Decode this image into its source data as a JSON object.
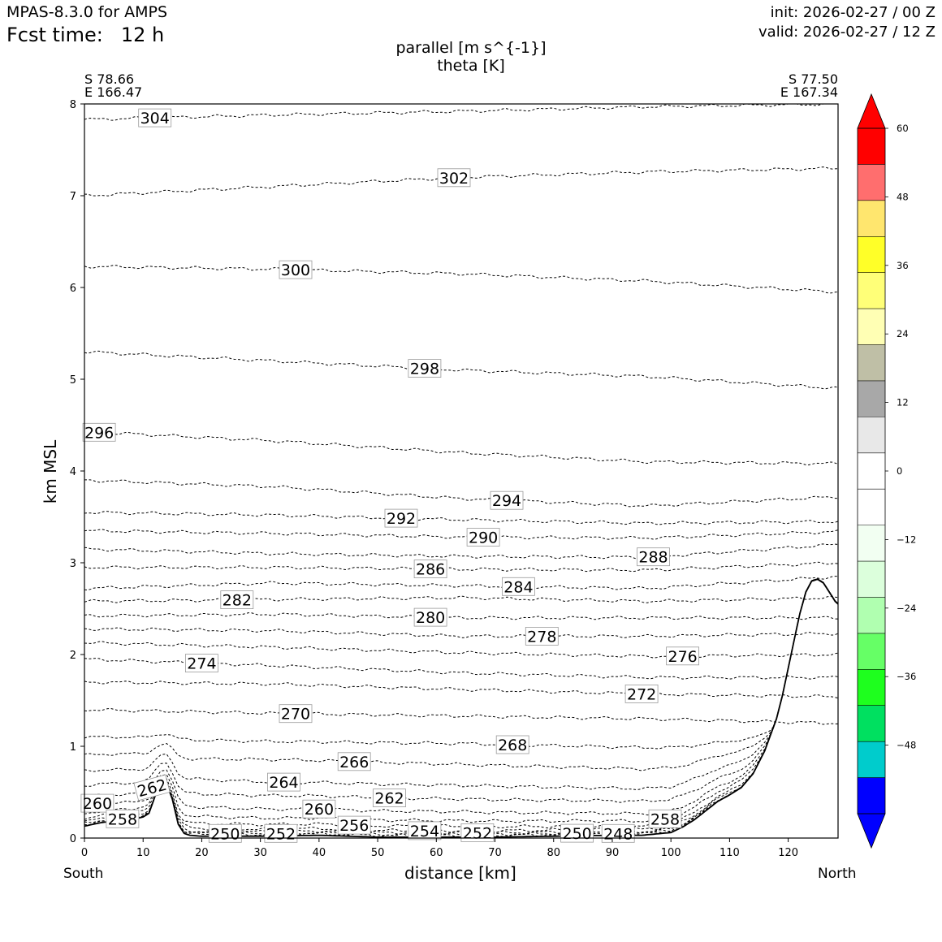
{
  "header": {
    "model_title": "MPAS-8.3.0 for AMPS",
    "fcst_label": "Fcst time:",
    "fcst_value": "12 h",
    "init": "init: 2026-02-27 / 00 Z",
    "valid": "valid: 2026-02-27 / 12 Z",
    "var_line1": "parallel [m s^{-1}]",
    "var_line2": "theta [K]"
  },
  "endpoints": {
    "left_lat": "S 78.66",
    "left_lon": "E 166.47",
    "right_lat": "S 77.50",
    "right_lon": "E 167.34",
    "south": "South",
    "north": "North"
  },
  "chart_data": {
    "type": "cross-section contour",
    "title": "parallel [m s^{-1}] / theta [K]",
    "xlabel": "distance [km]",
    "ylabel": "km MSL",
    "xlim": [
      0,
      128.5
    ],
    "ylim": [
      0,
      8
    ],
    "x_ticks": [
      0,
      10,
      20,
      30,
      40,
      50,
      60,
      70,
      80,
      90,
      100,
      110,
      120
    ],
    "y_ticks": [
      0,
      1,
      2,
      3,
      4,
      5,
      6,
      7,
      8
    ],
    "terrain": {
      "x": [
        0,
        3,
        6,
        8,
        10,
        11,
        12,
        13,
        14,
        15,
        16,
        17,
        18,
        20,
        25,
        30,
        40,
        45,
        50,
        60,
        70,
        80,
        90,
        95,
        100,
        102,
        104,
        106,
        108,
        110,
        112,
        114,
        116,
        118,
        119,
        120,
        121,
        122,
        123,
        124,
        125,
        126,
        127,
        128,
        128.5
      ],
      "z": [
        0.13,
        0.17,
        0.19,
        0.2,
        0.23,
        0.27,
        0.45,
        0.58,
        0.6,
        0.42,
        0.15,
        0.05,
        0.03,
        0.02,
        0.02,
        0.02,
        0.03,
        0.02,
        0.01,
        0.01,
        0.01,
        0.02,
        0.03,
        0.03,
        0.06,
        0.12,
        0.2,
        0.3,
        0.4,
        0.47,
        0.55,
        0.7,
        0.95,
        1.3,
        1.55,
        1.85,
        2.15,
        2.45,
        2.68,
        2.8,
        2.82,
        2.78,
        2.68,
        2.58,
        2.55
      ]
    },
    "theta_levels": [
      {
        "value": 304,
        "z": [
          7.83,
          7.88,
          7.92,
          7.97,
          8.0
        ],
        "label_x": 12
      },
      {
        "value": 302,
        "z": [
          7.0,
          7.1,
          7.2,
          7.26,
          7.3
        ],
        "label_x": 63
      },
      {
        "value": 300,
        "z": [
          6.23,
          6.2,
          6.15,
          6.07,
          5.95
        ],
        "label_x": 36
      },
      {
        "value": 298,
        "z": [
          5.3,
          5.2,
          5.1,
          5.03,
          4.9
        ],
        "label_x": 58
      },
      {
        "value": 296,
        "z": [
          4.43,
          4.33,
          4.2,
          4.1,
          4.08
        ],
        "label_x": 2.5
      },
      {
        "value": 294,
        "z": [
          3.9,
          3.83,
          3.7,
          3.62,
          3.72
        ],
        "label_x": 72
      },
      {
        "value": 292,
        "z": [
          3.55,
          3.52,
          3.47,
          3.43,
          3.45
        ],
        "label_x": 54
      },
      {
        "value": 290,
        "z": [
          3.35,
          3.32,
          3.28,
          3.27,
          3.34
        ],
        "label_x": 68
      },
      {
        "value": 288,
        "z": [
          3.15,
          3.1,
          3.07,
          3.06,
          3.2
        ],
        "label_x": 97
      },
      {
        "value": 286,
        "z": [
          2.95,
          2.95,
          2.93,
          2.92,
          3.0
        ],
        "label_x": 59
      },
      {
        "value": 284,
        "z": [
          2.72,
          2.78,
          2.75,
          2.72,
          2.85
        ],
        "label_x": 74
      },
      {
        "value": 282,
        "z": [
          2.58,
          2.6,
          2.62,
          2.58,
          2.62
        ],
        "label_x": 26
      },
      {
        "value": 280,
        "z": [
          2.42,
          2.44,
          2.4,
          2.4,
          2.4
        ],
        "label_x": 59
      },
      {
        "value": 278,
        "z": [
          2.28,
          2.26,
          2.2,
          2.2,
          2.23
        ],
        "label_x": 78
      },
      {
        "value": 276,
        "z": [
          2.13,
          2.08,
          2.02,
          1.98,
          2.0
        ],
        "label_x": 102
      },
      {
        "value": 274,
        "z": [
          1.95,
          1.88,
          1.8,
          1.75,
          1.75
        ],
        "label_x": 20
      },
      {
        "value": 272,
        "z": [
          1.7,
          1.68,
          1.62,
          1.57,
          1.54
        ],
        "label_x": 95
      },
      {
        "value": 270,
        "z": [
          1.4,
          1.36,
          1.33,
          1.3,
          1.25
        ],
        "label_x": 36
      },
      {
        "value": 268,
        "z": [
          1.09,
          1.05,
          1.03,
          0.98,
          0.95
        ],
        "label_x": 73
      },
      {
        "value": 266,
        "z": [
          0.87,
          0.85,
          0.8,
          0.74,
          0.78
        ],
        "label_x": 46
      },
      {
        "value": 264,
        "z": [
          0.68,
          0.6,
          0.57,
          0.52,
          0.6
        ],
        "label_x": 34
      },
      {
        "value": 262,
        "z": [
          0.5,
          0.45,
          0.42,
          0.38,
          0.42
        ],
        "label_x": 52
      },
      {
        "value": 260,
        "z": [
          0.36,
          0.3,
          0.28,
          0.24,
          0.3
        ],
        "label_x": 40
      },
      {
        "value": 258,
        "z": [
          0.25,
          0.2,
          0.18,
          0.16,
          0.22
        ],
        "label_x": 99
      },
      {
        "value": 256,
        "z": [
          0.16,
          0.13,
          0.12,
          0.1,
          0.12
        ],
        "label_x": 46
      },
      {
        "value": 254,
        "z": [
          0.1,
          0.08,
          0.07,
          0.07,
          0.08
        ],
        "label_x": 58
      },
      {
        "value": 252,
        "z": [
          0.06,
          0.05,
          0.05,
          0.04,
          0.05
        ],
        "label_x": 67
      },
      {
        "value": 250,
        "z": [
          0.04,
          0.03,
          0.03,
          0.03,
          0.04
        ],
        "label_x": 84
      },
      {
        "value": 248,
        "z": [
          0.03,
          0.02,
          0.02,
          0.02,
          0.03
        ],
        "label_x": 91
      }
    ],
    "extra_labels": [
      {
        "text": "262",
        "x": 11.5,
        "z": 0.55,
        "rotate": -15
      },
      {
        "text": "260",
        "x": 2.2,
        "z": 0.38
      },
      {
        "text": "258",
        "x": 6.5,
        "z": 0.21
      },
      {
        "text": "250",
        "x": 24,
        "z": 0.05
      },
      {
        "text": "252",
        "x": 33.5,
        "z": 0.05
      }
    ],
    "colorbar": {
      "min": -60,
      "max": 60,
      "step": 6,
      "ticks": [
        60,
        48,
        36,
        24,
        12,
        0,
        -12,
        -24,
        -36,
        -48
      ],
      "tick_labels": [
        "60",
        "48",
        "36",
        "24",
        "12",
        "0",
        "−12",
        "−24",
        "−36",
        "−48"
      ],
      "colors_top_to_bottom": [
        "#ff0000",
        "#ff6e6e",
        "#ffe66e",
        "#ffff28",
        "#ffff78",
        "#ffffb4",
        "#bfbfa6",
        "#a8a8a8",
        "#e8e8e8",
        "#ffffff",
        "#ffffff",
        "#f2fff2",
        "#dcffdc",
        "#b0ffb0",
        "#66ff66",
        "#1eff1e",
        "#00e060",
        "#00cccc",
        "#0000ff"
      ],
      "over_color": "#ff0000",
      "under_color": "#0000ff"
    }
  }
}
